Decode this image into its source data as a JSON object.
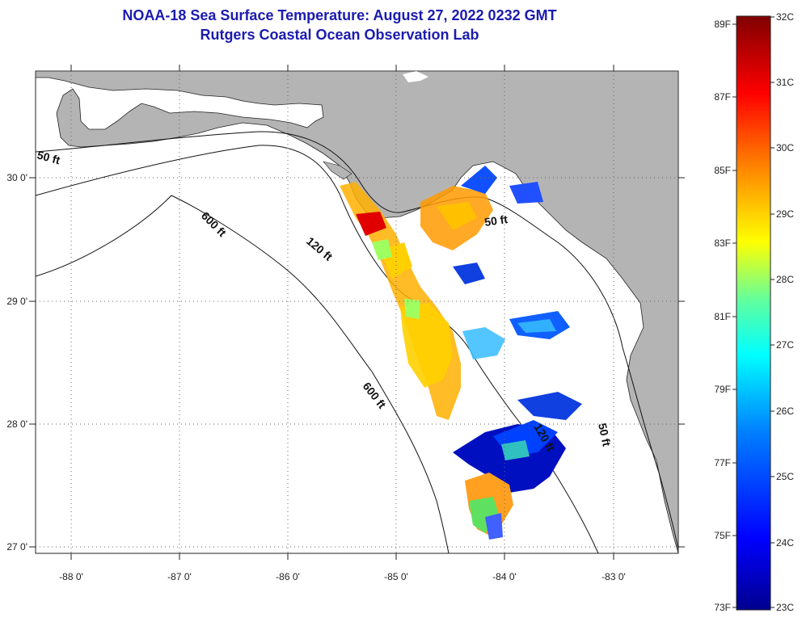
{
  "title": {
    "line1": "NOAA-18 Sea Surface Temperature:  August 27, 2022 0232 GMT",
    "line2": "Rutgers Coastal Ocean Observation Lab"
  },
  "map": {
    "lon_ticks": [
      "-88 0'",
      "-87 0'",
      "-86 0'",
      "-85 0'",
      "-84 0'",
      "-83 0'"
    ],
    "lat_ticks": [
      "30 0'",
      "29 0'",
      "28 0'",
      "27 0'"
    ],
    "contour_labels": [
      "50 ft",
      "600 ft",
      "120 ft",
      "50 ft",
      "600 ft",
      "120 ft",
      "50 ft"
    ],
    "colors": {
      "land": "#b4b4b4",
      "water": "#ffffff",
      "grid": "#666666"
    }
  },
  "colorbar": {
    "fahrenheit": [
      "89F",
      "87F",
      "85F",
      "83F",
      "81F",
      "79F",
      "77F",
      "75F",
      "73F"
    ],
    "celsius": [
      "32C",
      "31C",
      "30C",
      "29C",
      "28C",
      "27C",
      "26C",
      "25C",
      "24C",
      "23C"
    ]
  }
}
